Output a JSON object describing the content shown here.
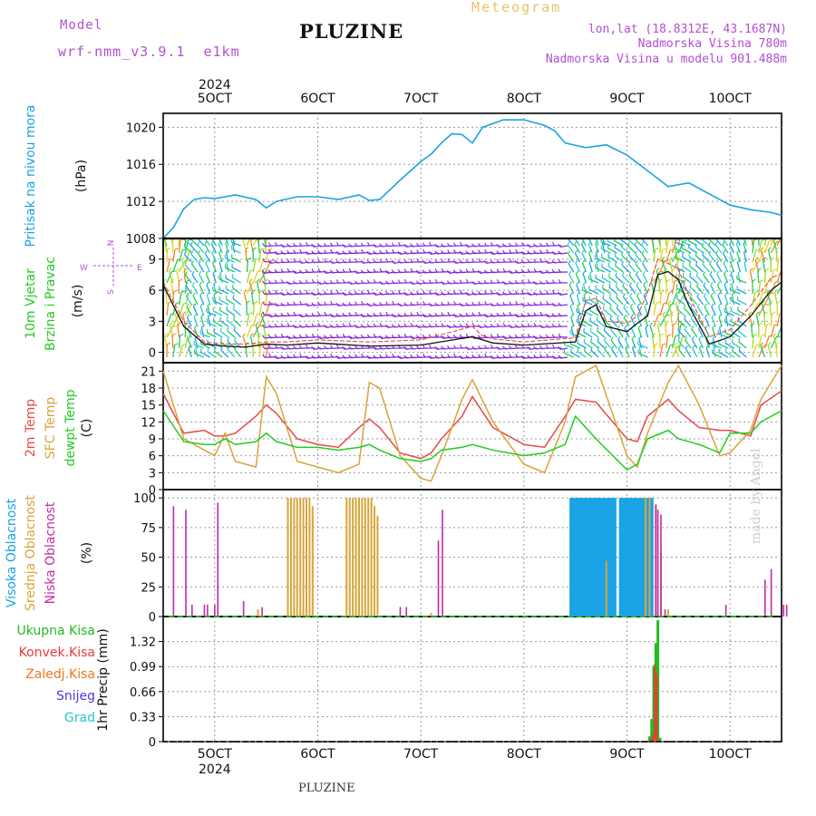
{
  "header": {
    "model_label": "Model",
    "model_name": "wrf-nmm_v3.9.1  e1km",
    "meteogram_label": "Meteogram",
    "station": "PLUZINE",
    "lonlat": "lon,lat (18.8312E, 43.1687N)",
    "altitude": "Nadmorska Visina 780m",
    "model_altitude": "Nadmorska Visina u modelu 901.488m",
    "footer_station": "PLUZINE",
    "watermark": "made by Angel"
  },
  "colors": {
    "pressure": "#1aa3e6",
    "t2m": "#e84848",
    "sfc": "#d9a43a",
    "dewpt": "#22cc22",
    "cloud_high": "#1aa3e6",
    "cloud_mid": "#d9a43a",
    "cloud_low": "#c22aa8",
    "precip_total": "#22bb22",
    "precip_conv": "#e83a3a",
    "precip_frozen": "#ee7722",
    "precip_snow": "#4a3ae0",
    "precip_graupel": "#22c6c6",
    "header_purple": "#b34fd1",
    "header_gold": "#e8c36a"
  },
  "time_axis": {
    "year": "2024",
    "labels": [
      "5OCT",
      "6OCT",
      "7OCT",
      "8OCT",
      "9OCT",
      "10OCT"
    ],
    "label_days": [
      5,
      6,
      7,
      8,
      9,
      10
    ],
    "start_day": 4.5,
    "end_day": 10.5
  },
  "chart_data": [
    {
      "id": "pressure",
      "type": "line",
      "ylabel": "Pritisak na nivou mora",
      "unit": "(hPa)",
      "ylim": [
        1008,
        1021.5
      ],
      "ticks": [
        1008,
        1012,
        1016,
        1020
      ],
      "grid": true,
      "x": [
        4.5,
        4.6,
        4.7,
        4.8,
        4.9,
        5.0,
        5.2,
        5.4,
        5.5,
        5.6,
        5.8,
        6.0,
        6.2,
        6.4,
        6.5,
        6.6,
        6.8,
        7.0,
        7.1,
        7.2,
        7.3,
        7.4,
        7.5,
        7.6,
        7.8,
        8.0,
        8.1,
        8.2,
        8.3,
        8.4,
        8.6,
        8.8,
        9.0,
        9.2,
        9.4,
        9.6,
        9.8,
        10.0,
        10.2,
        10.4,
        10.5
      ],
      "series": [
        {
          "name": "",
          "values": [
            1008.0,
            1009.2,
            1011.2,
            1012.2,
            1012.4,
            1012.3,
            1012.7,
            1012.2,
            1011.3,
            1012.0,
            1012.5,
            1012.5,
            1012.2,
            1012.7,
            1012.1,
            1012.2,
            1014.3,
            1016.3,
            1017.1,
            1018.3,
            1019.3,
            1019.2,
            1018.3,
            1020.0,
            1020.8,
            1020.8,
            1020.5,
            1020.2,
            1019.6,
            1018.3,
            1017.8,
            1018.1,
            1017.0,
            1015.3,
            1013.6,
            1014.0,
            1012.8,
            1011.6,
            1011.1,
            1010.8,
            1010.5
          ]
        }
      ]
    },
    {
      "id": "wind",
      "type": "line",
      "ylabel": "10m Vjetar",
      "ylabel2": "Brzina i Pravac",
      "unit": "(m/s)",
      "compass": {
        "n": "N",
        "e": "E",
        "w": "W",
        "s": "S"
      },
      "ylim": [
        -1,
        11
      ],
      "ticks": [
        0,
        3,
        6,
        9
      ],
      "grid": true,
      "x": [
        4.5,
        4.7,
        4.9,
        5.1,
        5.3,
        5.5,
        5.7,
        6.0,
        6.5,
        7.0,
        7.5,
        7.6,
        7.7,
        8.0,
        8.5,
        8.6,
        8.7,
        8.8,
        9.0,
        9.1,
        9.2,
        9.3,
        9.4,
        9.5,
        9.6,
        9.8,
        10.0,
        10.2,
        10.4,
        10.5
      ],
      "series": [
        {
          "name": "speed",
          "values": [
            6.5,
            2.5,
            0.8,
            0.6,
            0.5,
            0.8,
            0.7,
            0.9,
            0.6,
            0.7,
            1.5,
            1.2,
            0.9,
            0.7,
            1.0,
            4.0,
            4.6,
            2.5,
            2.0,
            2.8,
            3.5,
            7.5,
            7.8,
            7.0,
            4.5,
            0.8,
            1.5,
            3.5,
            6.0,
            6.8
          ]
        },
        {
          "name": "gust",
          "values": [
            6.8,
            3.0,
            1.0,
            0.8,
            0.8,
            1.0,
            1.0,
            1.2,
            1.0,
            1.2,
            2.5,
            1.6,
            1.3,
            1.0,
            1.4,
            5.0,
            5.2,
            3.0,
            2.8,
            3.5,
            5.8,
            9.0,
            8.6,
            8.0,
            5.5,
            1.5,
            2.2,
            4.5,
            7.2,
            7.6
          ]
        }
      ]
    },
    {
      "id": "temperature",
      "type": "line",
      "ylabel": "2m Temp",
      "ylabel2": "SFC Temp",
      "ylabel3": "dewpt Temp",
      "unit": "(C)",
      "ylim": [
        0,
        22.5
      ],
      "ticks": [
        0,
        3,
        6,
        9,
        12,
        15,
        18,
        21
      ],
      "grid": true,
      "x": [
        4.5,
        4.7,
        4.9,
        5.0,
        5.1,
        5.2,
        5.4,
        5.5,
        5.6,
        5.8,
        6.0,
        6.2,
        6.4,
        6.5,
        6.6,
        6.8,
        7.0,
        7.1,
        7.2,
        7.4,
        7.5,
        7.7,
        8.0,
        8.2,
        8.4,
        8.5,
        8.7,
        9.0,
        9.1,
        9.2,
        9.4,
        9.5,
        9.7,
        9.9,
        10.0,
        10.2,
        10.3,
        10.5
      ],
      "series": [
        {
          "name": "2m Temp",
          "values": [
            17,
            10,
            10.5,
            9.5,
            9.5,
            10,
            13,
            15,
            13.5,
            9,
            8,
            7.5,
            11,
            12.5,
            11,
            6.5,
            5.5,
            6.5,
            9,
            13,
            16.5,
            11,
            8,
            7.5,
            13,
            16,
            15.5,
            9,
            8.5,
            13,
            16,
            14,
            11,
            10.5,
            10.5,
            9.5,
            15,
            17.5
          ]
        },
        {
          "name": "SFC Temp",
          "values": [
            21,
            9,
            7,
            6,
            10,
            5,
            4,
            20,
            17,
            5,
            4,
            3,
            4.5,
            19,
            18,
            6,
            2,
            1.5,
            6,
            16,
            19.5,
            12,
            4.5,
            3,
            12,
            20,
            22,
            6,
            4,
            10,
            19,
            22,
            15,
            6,
            6.5,
            10.5,
            16,
            22
          ]
        },
        {
          "name": "dewpt Temp",
          "values": [
            14,
            8.5,
            8,
            8,
            9,
            8,
            8.5,
            10,
            8.5,
            7.5,
            7.5,
            7,
            7.5,
            8,
            7,
            5.5,
            5,
            5.5,
            7,
            7.5,
            8,
            7,
            6,
            6.5,
            8,
            13,
            9,
            3.5,
            4.5,
            9,
            10.5,
            9,
            8,
            6.5,
            10,
            10,
            12,
            14
          ]
        }
      ]
    },
    {
      "id": "clouds",
      "type": "bar",
      "ylabel": "Visoka Oblacnost",
      "ylabel2": "Srednja Oblacnost",
      "ylabel3": "Niska Oblacnost",
      "unit": "(%)",
      "ylim": [
        0,
        107
      ],
      "ticks": [
        0,
        25,
        50,
        75,
        100
      ],
      "grid": true,
      "series": [
        {
          "name": "Visoka Oblacnost",
          "x": [
            8.46,
            8.49,
            8.52,
            8.55,
            8.58,
            8.61,
            8.64,
            8.67,
            8.7,
            8.73,
            8.76,
            8.79,
            8.82,
            8.85,
            8.88,
            8.94,
            8.97,
            9.0,
            9.03,
            9.06,
            9.09,
            9.12,
            9.15,
            9.18,
            9.21,
            9.24
          ],
          "values": [
            100,
            100,
            100,
            100,
            100,
            100,
            100,
            100,
            100,
            100,
            100,
            100,
            100,
            100,
            100,
            100,
            100,
            100,
            100,
            100,
            100,
            100,
            100,
            100,
            100,
            100
          ]
        },
        {
          "name": "Srednja Oblacnost",
          "x": [
            5.71,
            5.74,
            5.77,
            5.8,
            5.83,
            5.86,
            5.89,
            5.92,
            5.95,
            6.28,
            6.31,
            6.34,
            6.37,
            6.4,
            6.43,
            6.46,
            6.49,
            6.52,
            6.55,
            6.58,
            8.8,
            9.18,
            9.22,
            9.28,
            9.33,
            9.4,
            5.42,
            7.1
          ],
          "values": [
            100,
            100,
            100,
            100,
            100,
            100,
            100,
            100,
            93,
            100,
            100,
            100,
            100,
            100,
            100,
            100,
            100,
            100,
            93,
            85,
            47,
            100,
            100,
            95,
            55,
            6,
            6,
            3
          ]
        },
        {
          "name": "Niska Oblacnost",
          "x": [
            4.6,
            4.72,
            4.78,
            4.9,
            4.93,
            5.0,
            5.03,
            5.28,
            5.46,
            7.17,
            7.21,
            9.28,
            9.3,
            9.33,
            9.37,
            9.96,
            10.34,
            10.4,
            10.52,
            10.55,
            6.8,
            6.86
          ],
          "values": [
            93,
            90,
            10,
            10,
            10,
            10,
            96,
            13,
            8,
            64,
            90,
            94,
            90,
            86,
            6,
            10,
            31,
            40,
            10,
            10,
            8,
            8
          ]
        }
      ]
    },
    {
      "id": "precipitation",
      "type": "bar",
      "ylabel": "1hr Precip (mm)",
      "legend": [
        "Ukupna Kisa",
        "Konvek.Kisa",
        "Zaledj.Kisa",
        "Snijeg",
        "Grad"
      ],
      "ylim": [
        0,
        1.65
      ],
      "ticks": [
        0,
        0.33,
        0.66,
        0.99,
        1.32
      ],
      "tick_labels": [
        "0",
        "0.33",
        "0.66",
        "0.99",
        "1.32"
      ],
      "grid": true,
      "series": [
        {
          "name": "Ukupna Kisa",
          "x": [
            9.22,
            9.24,
            9.26,
            9.28,
            9.3,
            9.32
          ],
          "values": [
            0.07,
            0.3,
            1.0,
            1.3,
            1.6,
            0.05
          ]
        },
        {
          "name": "Konvek.Kisa",
          "x": [
            9.23,
            9.25,
            9.27,
            9.29
          ],
          "values": [
            0.04,
            0.1,
            1.02,
            0.9
          ]
        }
      ]
    }
  ]
}
